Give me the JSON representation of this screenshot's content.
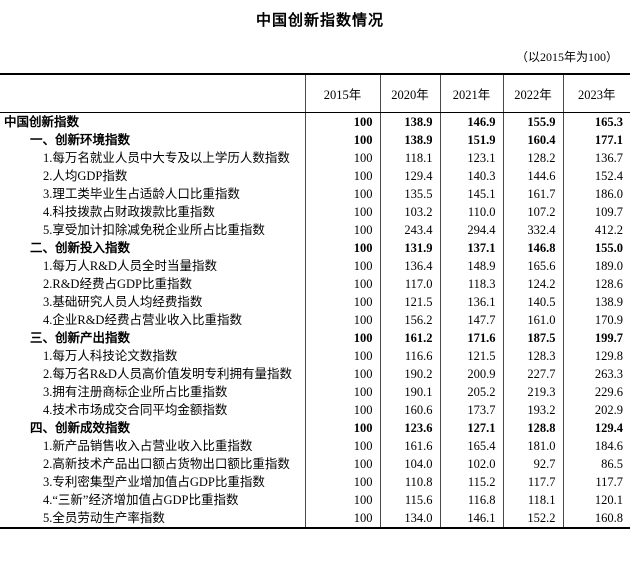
{
  "title": "中国创新指数情况",
  "note": "（以2015年为100）",
  "table": {
    "columns": [
      "2015年",
      "2020年",
      "2021年",
      "2022年",
      "2023年"
    ],
    "rows": [
      {
        "label": "中国创新指数",
        "level": 0,
        "bold": true,
        "values": [
          "100",
          "138.9",
          "146.9",
          "155.9",
          "165.3"
        ]
      },
      {
        "label": "一、创新环境指数",
        "level": 1,
        "bold": true,
        "values": [
          "100",
          "138.9",
          "151.9",
          "160.4",
          "177.1"
        ]
      },
      {
        "label": "1.每万名就业人员中大专及以上学历人数指数",
        "level": 2,
        "bold": false,
        "values": [
          "100",
          "118.1",
          "123.1",
          "128.2",
          "136.7"
        ]
      },
      {
        "label": "2.人均GDP指数",
        "level": 2,
        "bold": false,
        "values": [
          "100",
          "129.4",
          "140.3",
          "144.6",
          "152.4"
        ]
      },
      {
        "label": "3.理工类毕业生占适龄人口比重指数",
        "level": 2,
        "bold": false,
        "values": [
          "100",
          "135.5",
          "145.1",
          "161.7",
          "186.0"
        ]
      },
      {
        "label": "4.科技拨款占财政拨款比重指数",
        "level": 2,
        "bold": false,
        "values": [
          "100",
          "103.2",
          "110.0",
          "107.2",
          "109.7"
        ]
      },
      {
        "label": "5.享受加计扣除减免税企业所占比重指数",
        "level": 2,
        "bold": false,
        "values": [
          "100",
          "243.4",
          "294.4",
          "332.4",
          "412.2"
        ]
      },
      {
        "label": "二、创新投入指数",
        "level": 1,
        "bold": true,
        "values": [
          "100",
          "131.9",
          "137.1",
          "146.8",
          "155.0"
        ]
      },
      {
        "label": "1.每万人R&D人员全时当量指数",
        "level": 2,
        "bold": false,
        "values": [
          "100",
          "136.4",
          "148.9",
          "165.6",
          "189.0"
        ]
      },
      {
        "label": "2.R&D经费占GDP比重指数",
        "level": 2,
        "bold": false,
        "values": [
          "100",
          "117.0",
          "118.3",
          "124.2",
          "128.6"
        ]
      },
      {
        "label": "3.基础研究人员人均经费指数",
        "level": 2,
        "bold": false,
        "values": [
          "100",
          "121.5",
          "136.1",
          "140.5",
          "138.9"
        ]
      },
      {
        "label": "4.企业R&D经费占营业收入比重指数",
        "level": 2,
        "bold": false,
        "values": [
          "100",
          "156.2",
          "147.7",
          "161.0",
          "170.9"
        ]
      },
      {
        "label": "三、创新产出指数",
        "level": 1,
        "bold": true,
        "values": [
          "100",
          "161.2",
          "171.6",
          "187.5",
          "199.7"
        ]
      },
      {
        "label": "1.每万人科技论文数指数",
        "level": 2,
        "bold": false,
        "values": [
          "100",
          "116.6",
          "121.5",
          "128.3",
          "129.8"
        ]
      },
      {
        "label": "2.每万名R&D人员高价值发明专利拥有量指数",
        "level": 2,
        "bold": false,
        "values": [
          "100",
          "190.2",
          "200.9",
          "227.7",
          "263.3"
        ]
      },
      {
        "label": "3.拥有注册商标企业所占比重指数",
        "level": 2,
        "bold": false,
        "values": [
          "100",
          "190.1",
          "205.2",
          "219.3",
          "229.6"
        ]
      },
      {
        "label": "4.技术市场成交合同平均金额指数",
        "level": 2,
        "bold": false,
        "values": [
          "100",
          "160.6",
          "173.7",
          "193.2",
          "202.9"
        ]
      },
      {
        "label": "四、创新成效指数",
        "level": 1,
        "bold": true,
        "values": [
          "100",
          "123.6",
          "127.1",
          "128.8",
          "129.4"
        ]
      },
      {
        "label": "1.新产品销售收入占营业收入比重指数",
        "level": 2,
        "bold": false,
        "values": [
          "100",
          "161.6",
          "165.4",
          "181.0",
          "184.6"
        ]
      },
      {
        "label": "2.高新技术产品出口额占货物出口额比重指数",
        "level": 2,
        "bold": false,
        "values": [
          "100",
          "104.0",
          "102.0",
          "92.7",
          "86.5"
        ]
      },
      {
        "label": "3.专利密集型产业增加值占GDP比重指数",
        "level": 2,
        "bold": false,
        "values": [
          "100",
          "110.8",
          "115.2",
          "117.7",
          "117.7"
        ]
      },
      {
        "label": "4.“三新”经济增加值占GDP比重指数",
        "level": 2,
        "bold": false,
        "values": [
          "100",
          "115.6",
          "116.8",
          "118.1",
          "120.1"
        ]
      },
      {
        "label": "5.全员劳动生产率指数",
        "level": 2,
        "bold": false,
        "values": [
          "100",
          "134.0",
          "146.1",
          "152.2",
          "160.8"
        ]
      }
    ]
  }
}
